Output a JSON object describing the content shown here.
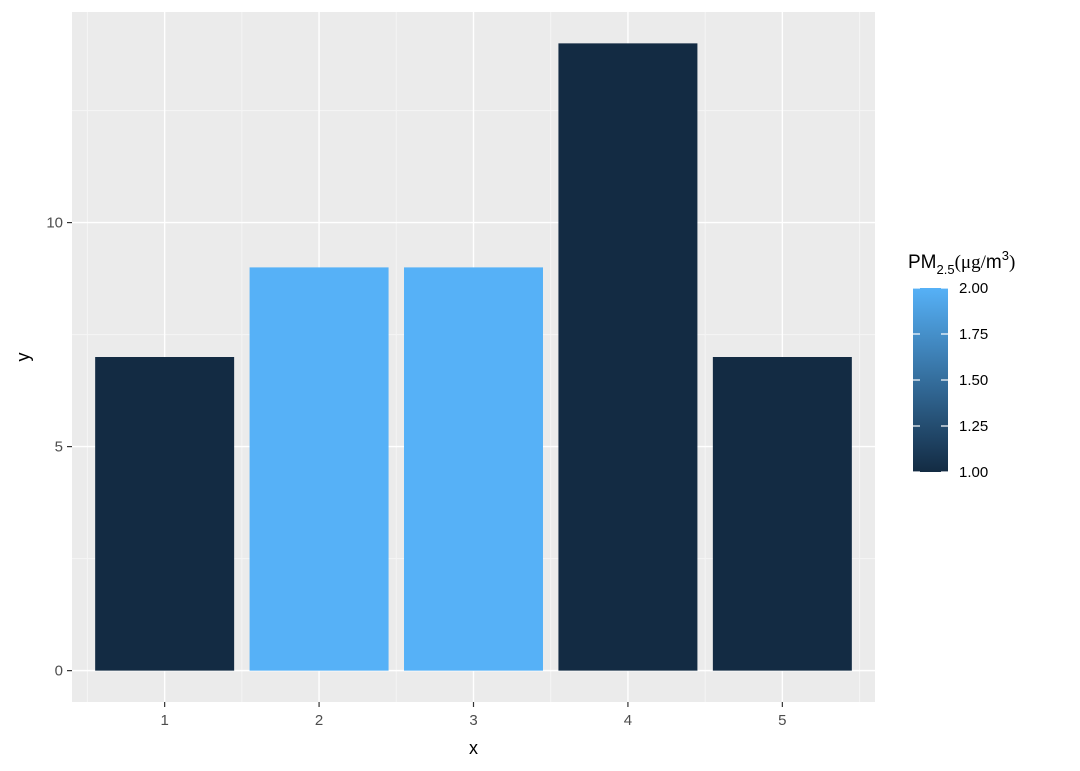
{
  "chart_data": {
    "type": "bar",
    "categories": [
      "1",
      "2",
      "3",
      "4",
      "5"
    ],
    "values": [
      7,
      9,
      9,
      14,
      7
    ],
    "fill_values": [
      1,
      2,
      2,
      1,
      1
    ],
    "xlabel": "x",
    "ylabel": "y",
    "ylim": [
      -0.7,
      14.7
    ],
    "yticks": [
      0,
      5,
      10
    ],
    "ytick_labels": [
      "0",
      "5",
      "10"
    ],
    "grid": true,
    "legend": {
      "title": {
        "base": "PM",
        "subscript": "2.5",
        "paren_open": "(",
        "unit": "μg",
        "slash": "/",
        "unit2": "m",
        "superscript": "3",
        "paren_close": ")"
      },
      "placement": "right",
      "range": [
        1.0,
        2.0
      ],
      "ticks": [
        2.0,
        1.75,
        1.5,
        1.25,
        1.0
      ],
      "tick_labels": [
        "2.00",
        "1.75",
        "1.50",
        "1.25",
        "1.00"
      ]
    },
    "colors": {
      "low": "#132B43",
      "high": "#56B1F7",
      "panel": "#EBEBEB",
      "grid_major": "#FFFFFF",
      "grid_minor": "#F5F5F5"
    }
  }
}
